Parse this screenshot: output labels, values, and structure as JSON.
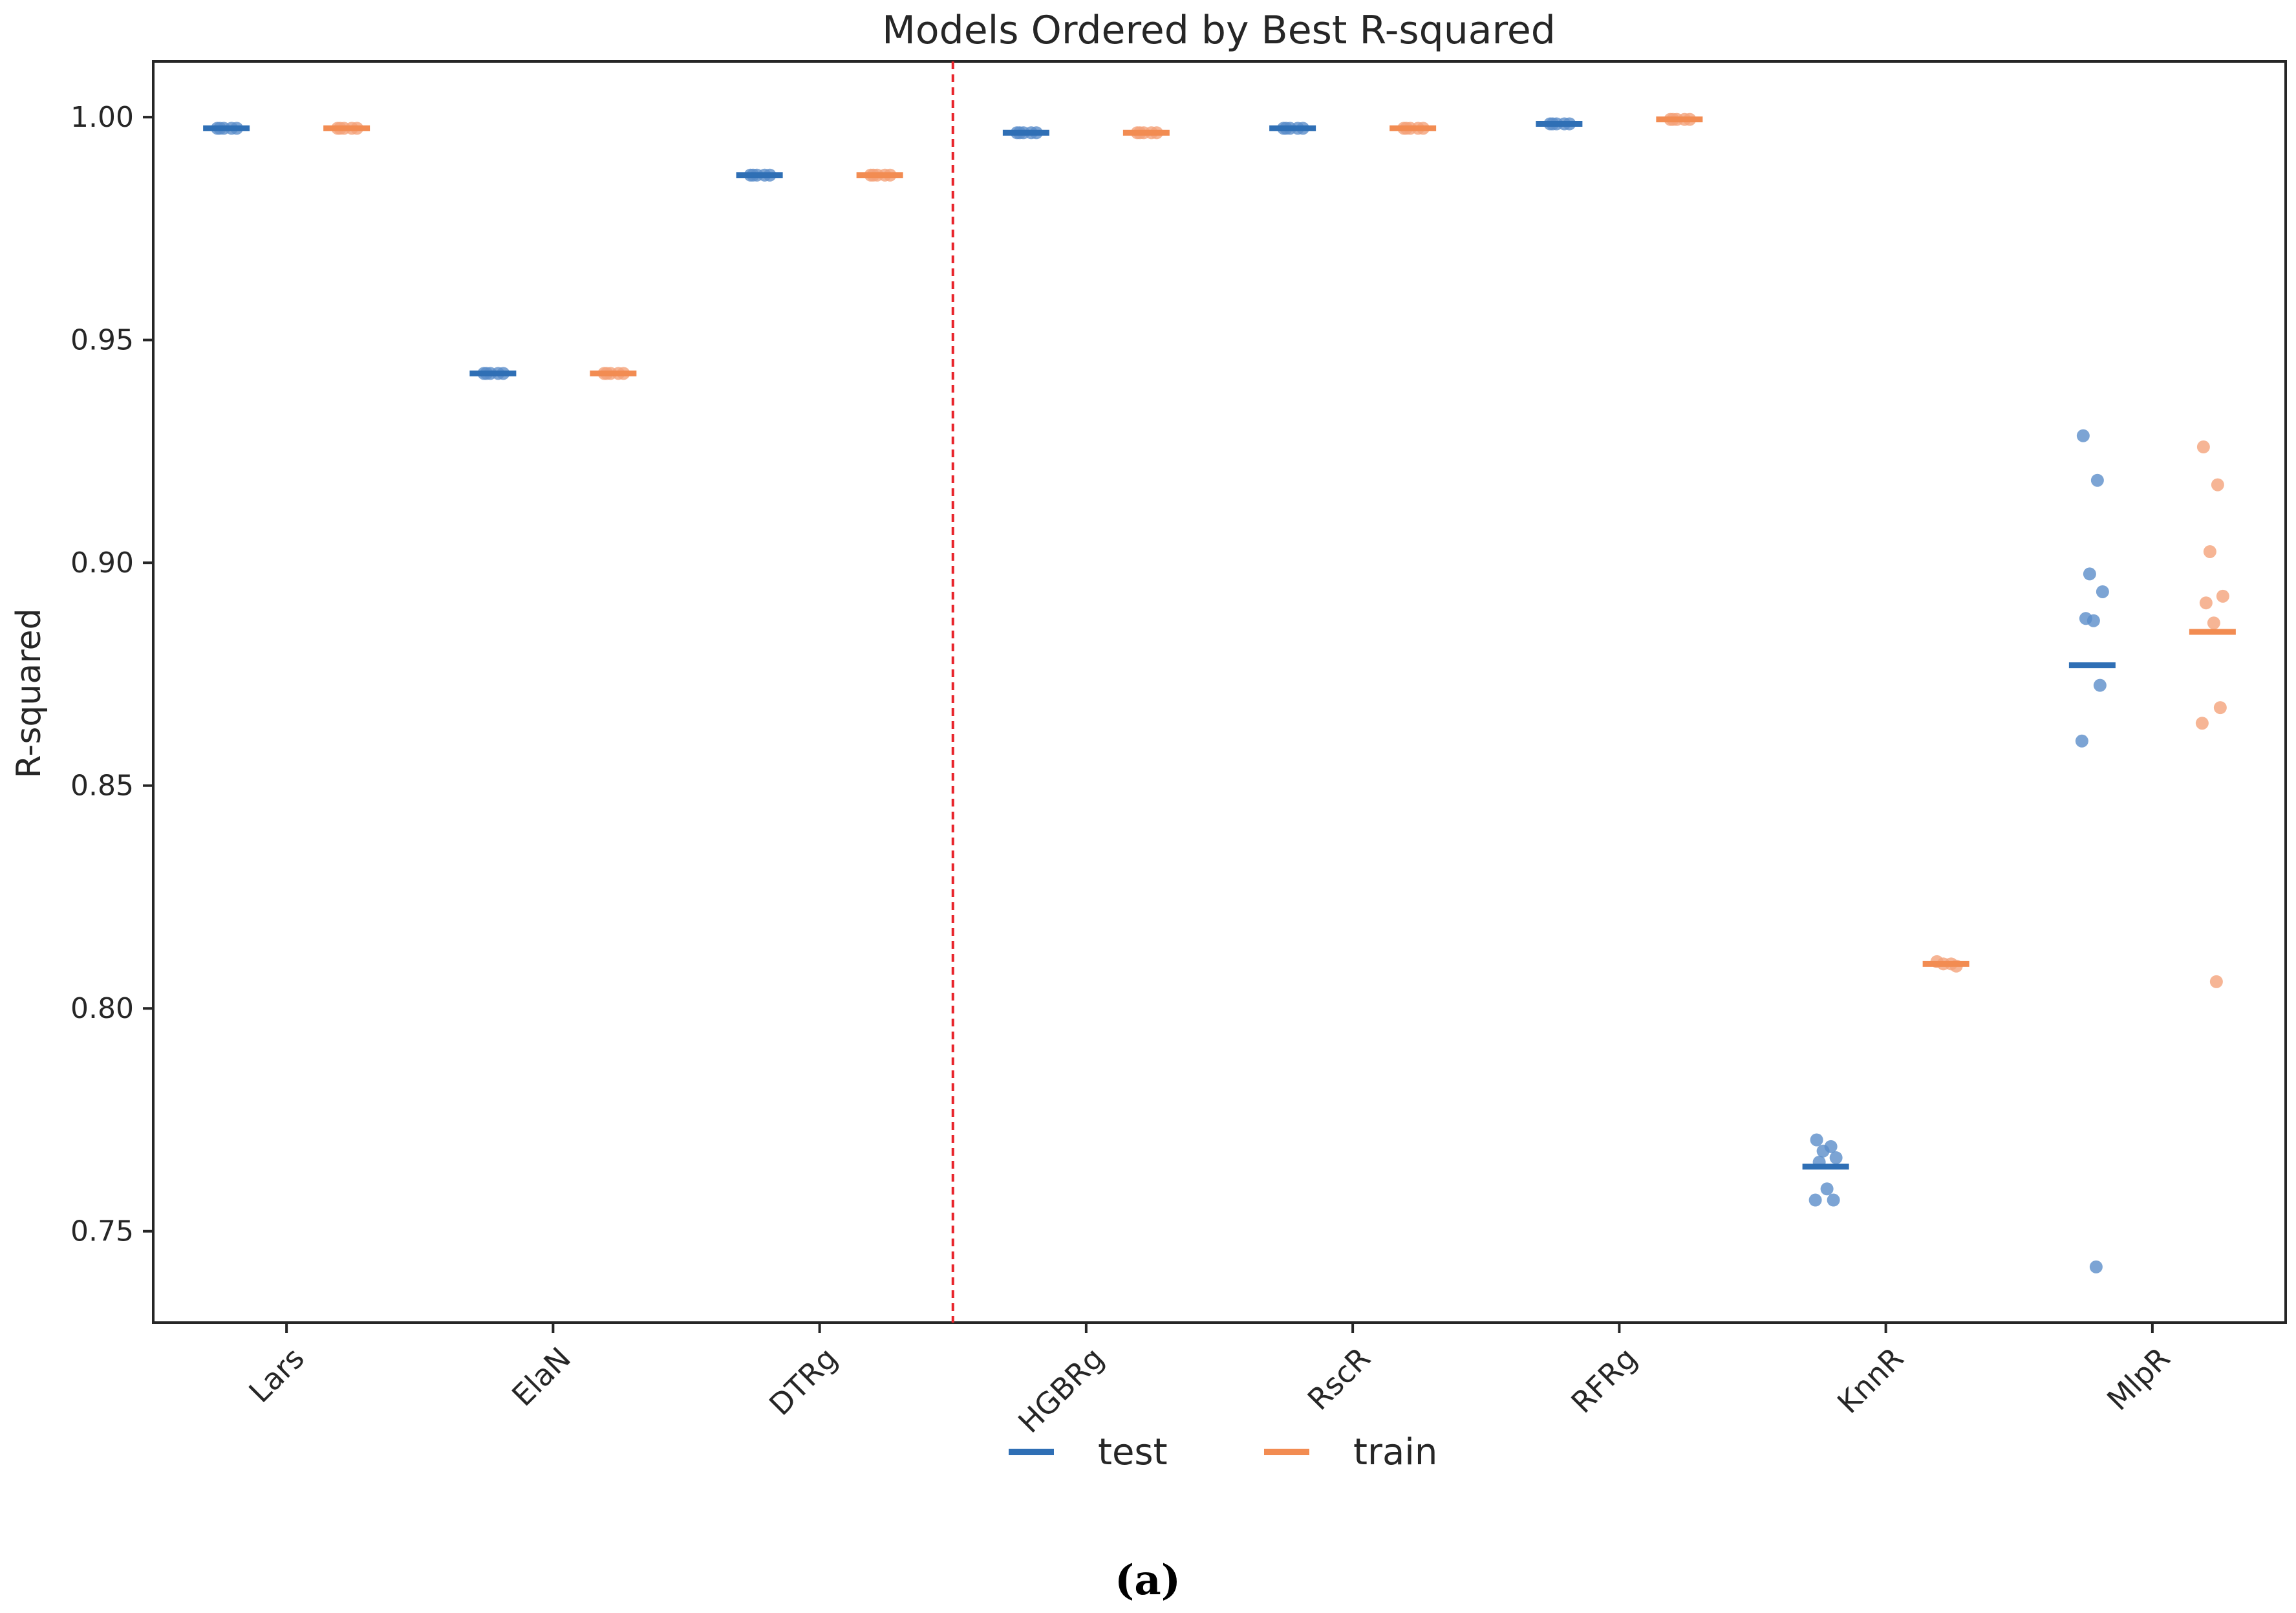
{
  "caption": "(a)",
  "chart_data": {
    "type": "scatter",
    "title": "Models Ordered by Best R-squared",
    "xlabel": "",
    "ylabel": "R-squared",
    "ylim": [
      0.7295,
      1.0125
    ],
    "yticks": [
      "0.75",
      "0.80",
      "0.85",
      "0.90",
      "0.95",
      "1.00"
    ],
    "ytick_values": [
      0.75,
      0.8,
      0.85,
      0.9,
      0.95,
      1.0
    ],
    "categories": [
      "Lars",
      "ElaN",
      "DTRg",
      "HGBRg",
      "RscR",
      "RFRg",
      "KnnR",
      "MlpR"
    ],
    "divider_after_category": "DTRg",
    "divider_color": "#e8232a",
    "grid": false,
    "legend_placement": "bottom-center",
    "series": [
      {
        "name": "test",
        "color": "#2f6fb5",
        "point_color": "#5b8dc9",
        "means": [
          0.9975,
          0.9425,
          0.987,
          0.9965,
          0.9975,
          0.9985,
          0.7645,
          0.877
        ],
        "points": [
          [
            0.9975,
            0.9975,
            0.9975,
            0.9975,
            0.9975
          ],
          [
            0.9425,
            0.9425,
            0.9425,
            0.9425,
            0.9425
          ],
          [
            0.987,
            0.987,
            0.987,
            0.987,
            0.987
          ],
          [
            0.9965,
            0.9965,
            0.9965,
            0.9965,
            0.9965
          ],
          [
            0.9975,
            0.9975,
            0.9975,
            0.9975,
            0.9975
          ],
          [
            0.9985,
            0.9985,
            0.9985,
            0.9985,
            0.9985
          ],
          [
            0.7705,
            0.769,
            0.768,
            0.7665,
            0.7655,
            0.7595,
            0.757,
            0.757
          ],
          [
            0.9285,
            0.9185,
            0.8975,
            0.8935,
            0.8875,
            0.887,
            0.8725,
            0.86,
            0.742
          ]
        ]
      },
      {
        "name": "train",
        "color": "#f28c52",
        "point_color": "#f4a27a",
        "means": [
          0.9975,
          0.9425,
          0.987,
          0.9965,
          0.9975,
          0.9995,
          0.81,
          0.8845
        ],
        "points": [
          [
            0.9975,
            0.9975,
            0.9975,
            0.9975,
            0.9975
          ],
          [
            0.9425,
            0.9425,
            0.9425,
            0.9425,
            0.9425
          ],
          [
            0.987,
            0.987,
            0.987,
            0.987,
            0.987
          ],
          [
            0.9965,
            0.9965,
            0.9965,
            0.9965,
            0.9965
          ],
          [
            0.9975,
            0.9975,
            0.9975,
            0.9975,
            0.9975
          ],
          [
            0.9995,
            0.9995,
            0.9995,
            0.9995,
            0.9995
          ],
          [
            0.8105,
            0.81,
            0.81,
            0.8095
          ],
          [
            0.926,
            0.9175,
            0.9025,
            0.8925,
            0.891,
            0.8865,
            0.8675,
            0.864,
            0.806
          ]
        ]
      }
    ]
  }
}
